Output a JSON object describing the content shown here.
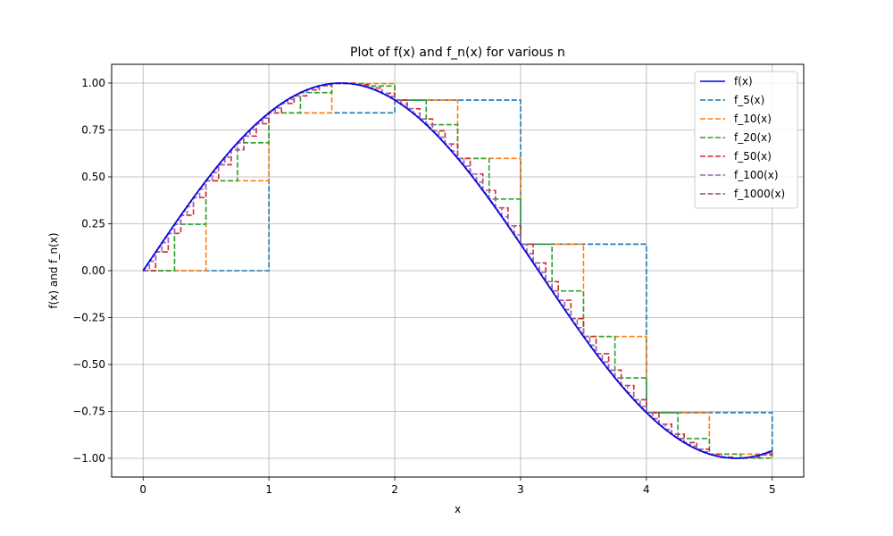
{
  "chart_data": {
    "type": "line",
    "title": "Plot of f(x) and f_n(x) for various n",
    "xlabel": "x",
    "ylabel": "f(x) and f_n(x)",
    "xlim": [
      -0.25,
      5.25
    ],
    "ylim": [
      -1.1,
      1.1
    ],
    "x_ticks": [
      0,
      1,
      2,
      3,
      4,
      5
    ],
    "x_tick_labels": [
      "0",
      "1",
      "2",
      "3",
      "4",
      "5"
    ],
    "y_ticks": [
      -1.0,
      -0.75,
      -0.5,
      -0.25,
      0.0,
      0.25,
      0.5,
      0.75,
      1.0
    ],
    "y_tick_labels": [
      "−1.00",
      "−0.75",
      "−0.50",
      "−0.25",
      "0.00",
      "0.25",
      "0.50",
      "0.75",
      "1.00"
    ],
    "grid": true,
    "legend_position": "top-right",
    "function": "sin(x)",
    "domain": [
      0,
      5
    ],
    "series": [
      {
        "name": "f(x)",
        "kind": "function",
        "color": "#0000ff",
        "style": "solid"
      },
      {
        "name": "f_5(x)",
        "kind": "step",
        "n": 5,
        "color": "#1f77b4",
        "style": "dashed"
      },
      {
        "name": "f_10(x)",
        "kind": "step",
        "n": 10,
        "color": "#ff7f0e",
        "style": "dashed"
      },
      {
        "name": "f_20(x)",
        "kind": "step",
        "n": 20,
        "color": "#2ca02c",
        "style": "dashed"
      },
      {
        "name": "f_50(x)",
        "kind": "step",
        "n": 50,
        "color": "#d62728",
        "style": "dashed"
      },
      {
        "name": "f_100(x)",
        "kind": "step",
        "n": 100,
        "color": "#9467bd",
        "style": "dashed"
      },
      {
        "name": "f_1000(x)",
        "kind": "step",
        "n": 1000,
        "color": "#8c564b",
        "style": "dashed"
      }
    ]
  }
}
